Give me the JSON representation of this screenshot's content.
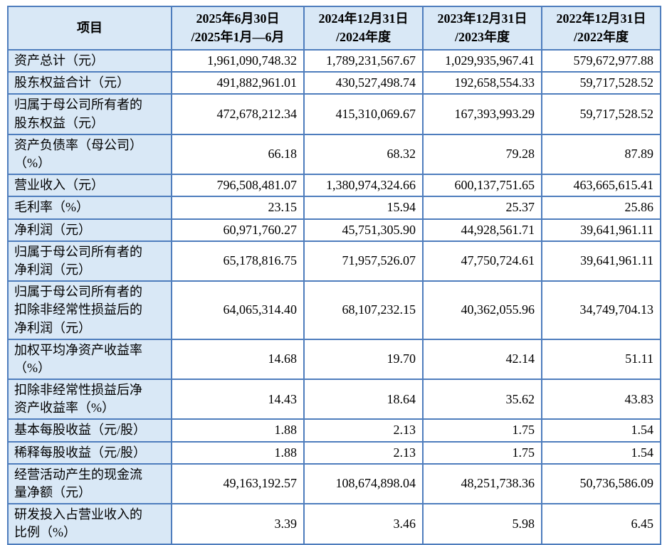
{
  "colors": {
    "border": "#4e7dbd",
    "header_bg": "#d9e8f6",
    "cell_bg": "#ffffff"
  },
  "table": {
    "item_header": "项目",
    "period_columns": [
      {
        "line1": "2025年6月30日",
        "line2": "/2025年1月—6月"
      },
      {
        "line1": "2024年12月31日",
        "line2": "/2024年度"
      },
      {
        "line1": "2023年12月31日",
        "line2": "/2023年度"
      },
      {
        "line1": "2022年12月31日",
        "line2": "/2022年度"
      }
    ],
    "rows": [
      {
        "label": "资产总计（元）",
        "values": [
          "1,961,090,748.32",
          "1,789,231,567.67",
          "1,029,935,967.41",
          "579,672,977.88"
        ]
      },
      {
        "label": "股东权益合计（元）",
        "values": [
          "491,882,961.01",
          "430,527,498.74",
          "192,658,554.33",
          "59,717,528.52"
        ]
      },
      {
        "label": "归属于母公司所有者的股东权益（元）",
        "values": [
          "472,678,212.34",
          "415,310,069.67",
          "167,393,993.29",
          "59,717,528.52"
        ]
      },
      {
        "label": "资产负债率（母公司）（%）",
        "values": [
          "66.18",
          "68.32",
          "79.28",
          "87.89"
        ]
      },
      {
        "label": "营业收入（元）",
        "values": [
          "796,508,481.07",
          "1,380,974,324.66",
          "600,137,751.65",
          "463,665,615.41"
        ]
      },
      {
        "label": "毛利率（%）",
        "values": [
          "23.15",
          "15.94",
          "25.37",
          "25.86"
        ]
      },
      {
        "label": "净利润（元）",
        "values": [
          "60,971,760.27",
          "45,751,305.90",
          "44,928,561.71",
          "39,641,961.11"
        ]
      },
      {
        "label": "归属于母公司所有者的净利润（元）",
        "values": [
          "65,178,816.75",
          "71,957,526.07",
          "47,750,724.61",
          "39,641,961.11"
        ]
      },
      {
        "label": "归属于母公司所有者的扣除非经常性损益后的净利润（元）",
        "values": [
          "64,065,314.40",
          "68,107,232.15",
          "40,362,055.96",
          "34,749,704.13"
        ]
      },
      {
        "label": "加权平均净资产收益率（%）",
        "values": [
          "14.68",
          "19.70",
          "42.14",
          "51.11"
        ]
      },
      {
        "label": "扣除非经常性损益后净资产收益率（%）",
        "values": [
          "14.43",
          "18.64",
          "35.62",
          "43.83"
        ]
      },
      {
        "label": "基本每股收益（元/股）",
        "values": [
          "1.88",
          "2.13",
          "1.75",
          "1.54"
        ]
      },
      {
        "label": "稀释每股收益（元/股）",
        "values": [
          "1.88",
          "2.13",
          "1.75",
          "1.54"
        ]
      },
      {
        "label": "经营活动产生的现金流量净额（元）",
        "values": [
          "49,163,192.57",
          "108,674,898.04",
          "48,251,738.36",
          "50,736,586.09"
        ]
      },
      {
        "label": "研发投入占营业收入的比例（%）",
        "values": [
          "3.39",
          "3.46",
          "5.98",
          "6.45"
        ]
      }
    ]
  }
}
